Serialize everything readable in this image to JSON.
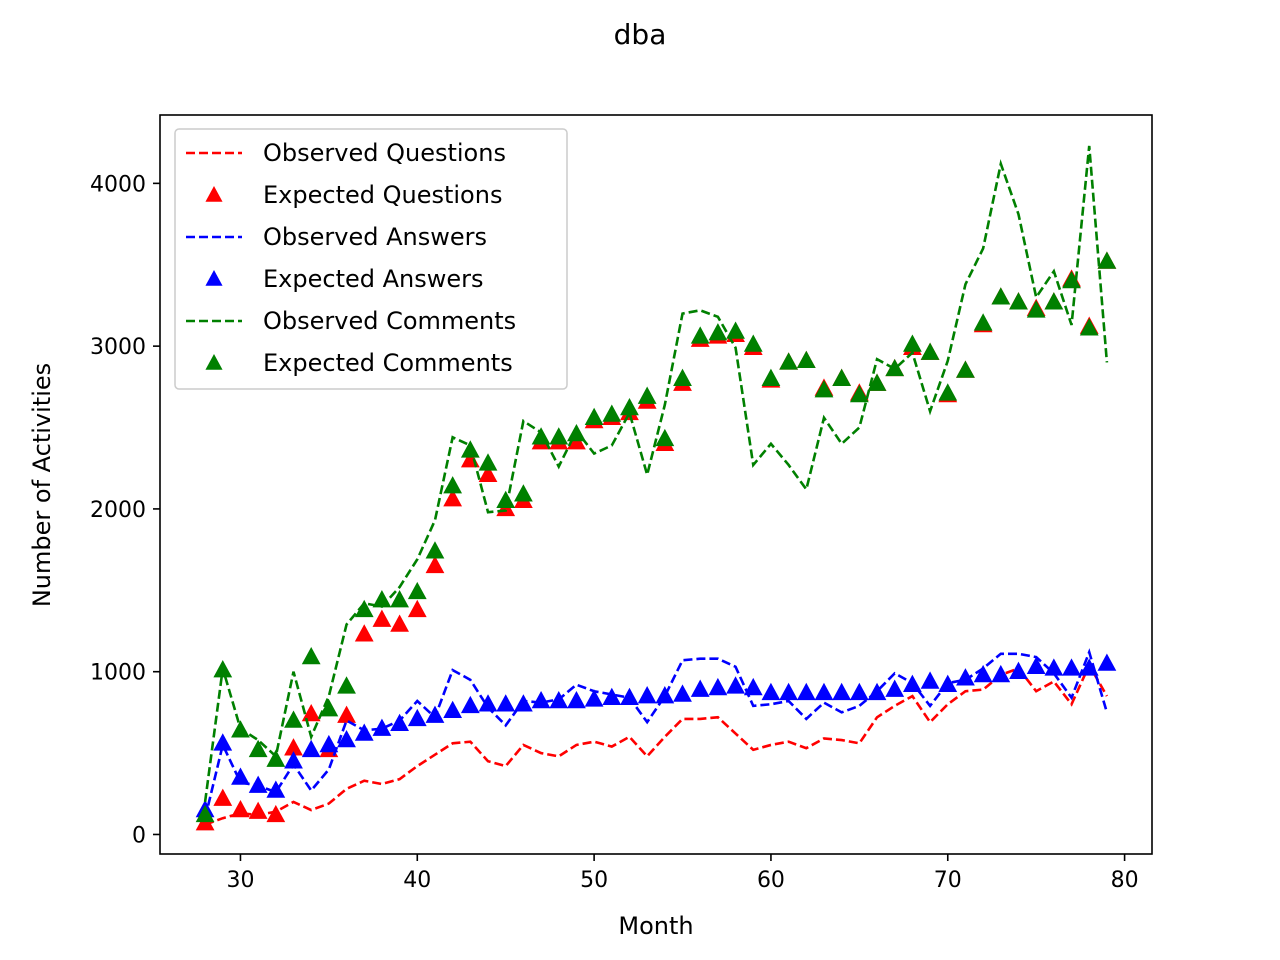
{
  "chart_data": {
    "type": "line",
    "title": "dba",
    "xlabel": "Month",
    "ylabel": "Number of Activities",
    "xlim": [
      25.45,
      81.55
    ],
    "ylim": [
      -120,
      4420
    ],
    "xticks": [
      30,
      40,
      50,
      60,
      70,
      80
    ],
    "yticks": [
      0,
      1000,
      2000,
      3000,
      4000
    ],
    "grid": false,
    "legend_position": "top-left",
    "x": [
      28,
      29,
      30,
      31,
      32,
      33,
      34,
      35,
      36,
      37,
      38,
      39,
      40,
      41,
      42,
      43,
      44,
      45,
      46,
      47,
      48,
      49,
      50,
      51,
      52,
      53,
      54,
      55,
      56,
      57,
      58,
      59,
      60,
      61,
      62,
      63,
      64,
      65,
      66,
      67,
      68,
      69,
      70,
      71,
      72,
      73,
      74,
      75,
      76,
      77,
      78,
      79
    ],
    "series": [
      {
        "name": "Observed Questions",
        "style": "dashed",
        "color": "#ff0000",
        "values": [
          60,
          100,
          130,
          120,
          140,
          200,
          150,
          190,
          280,
          330,
          310,
          340,
          420,
          490,
          560,
          570,
          450,
          420,
          550,
          500,
          480,
          550,
          570,
          540,
          600,
          480,
          600,
          710,
          710,
          720,
          620,
          520,
          550,
          570,
          530,
          590,
          580,
          560,
          720,
          790,
          850,
          690,
          800,
          880,
          890,
          980,
          1020,
          880,
          940,
          800,
          1040,
          850
        ]
      },
      {
        "name": "Expected Questions",
        "style": "triangle",
        "color": "#ff0000",
        "values": [
          70,
          220,
          150,
          140,
          120,
          530,
          740,
          520,
          730,
          1230,
          1320,
          1290,
          1380,
          1650,
          2060,
          2300,
          2210,
          2000,
          2050,
          2410,
          2410,
          2410,
          2540,
          2560,
          2590,
          2660,
          2400,
          2770,
          3040,
          3060,
          3070,
          2990,
          2790,
          2900,
          2910,
          2740,
          2800,
          2710,
          2770,
          2860,
          2990,
          2960,
          2700,
          2850,
          3130,
          3300,
          3270,
          3230,
          3270,
          3410,
          3120,
          3520
        ]
      },
      {
        "name": "Observed Answers",
        "style": "dashed",
        "color": "#0000ff",
        "values": [
          100,
          550,
          320,
          300,
          260,
          430,
          270,
          400,
          700,
          640,
          650,
          700,
          820,
          720,
          1010,
          950,
          780,
          670,
          820,
          810,
          830,
          920,
          880,
          860,
          840,
          690,
          850,
          1070,
          1080,
          1080,
          1030,
          790,
          800,
          820,
          710,
          810,
          750,
          790,
          880,
          990,
          930,
          790,
          930,
          950,
          1020,
          1110,
          1110,
          1090,
          990,
          840,
          1120,
          750
        ]
      },
      {
        "name": "Expected Answers",
        "style": "triangle",
        "color": "#0000ff",
        "values": [
          150,
          560,
          350,
          300,
          270,
          450,
          520,
          550,
          580,
          620,
          650,
          680,
          710,
          730,
          760,
          790,
          800,
          800,
          800,
          820,
          820,
          820,
          830,
          840,
          840,
          850,
          850,
          860,
          890,
          900,
          910,
          900,
          870,
          870,
          870,
          870,
          870,
          870,
          870,
          890,
          920,
          940,
          920,
          960,
          980,
          980,
          1000,
          1030,
          1020,
          1020,
          1020,
          1050
        ]
      },
      {
        "name": "Observed Comments",
        "style": "dashed",
        "color": "#008000",
        "values": [
          200,
          1020,
          650,
          580,
          480,
          1000,
          600,
          850,
          1290,
          1420,
          1400,
          1520,
          1690,
          1930,
          2440,
          2390,
          1980,
          1990,
          2540,
          2470,
          2260,
          2480,
          2340,
          2390,
          2590,
          2210,
          2640,
          3200,
          3220,
          3180,
          2990,
          2270,
          2400,
          2270,
          2120,
          2560,
          2400,
          2500,
          2920,
          2860,
          2960,
          2600,
          2910,
          3380,
          3600,
          4120,
          3810,
          3300,
          3460,
          3130,
          4230,
          2900
        ]
      },
      {
        "name": "Expected Comments",
        "style": "triangle",
        "color": "#008000",
        "values": [
          120,
          1010,
          640,
          520,
          460,
          700,
          1090,
          770,
          910,
          1380,
          1440,
          1440,
          1490,
          1740,
          2140,
          2360,
          2280,
          2050,
          2090,
          2440,
          2440,
          2460,
          2560,
          2580,
          2620,
          2690,
          2430,
          2800,
          3060,
          3080,
          3090,
          3010,
          2800,
          2900,
          2910,
          2730,
          2800,
          2700,
          2770,
          2860,
          3010,
          2960,
          2710,
          2850,
          3140,
          3300,
          3270,
          3220,
          3270,
          3400,
          3110,
          3520
        ]
      }
    ]
  }
}
